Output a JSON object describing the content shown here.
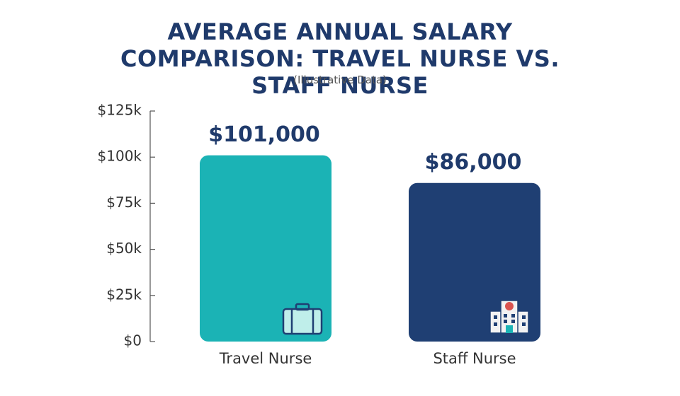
{
  "chart_data": {
    "type": "bar",
    "title": "AVERAGE ANNUAL SALARY COMPARISON: TRAVEL NURSE VS. STAFF NURSE",
    "subtitle": "(Illustrative Data)",
    "categories": [
      "Travel Nurse",
      "Staff Nurse"
    ],
    "values": [
      101000,
      86000
    ],
    "value_labels": [
      "$101,000",
      "$86,000"
    ],
    "colors": [
      "#1bb3b5",
      "#1f3f73"
    ],
    "ylim": [
      0,
      125000
    ],
    "yticks": [
      {
        "value": 0,
        "label": "$0"
      },
      {
        "value": 25000,
        "label": "$25k"
      },
      {
        "value": 50000,
        "label": "$50k"
      },
      {
        "value": 75000,
        "label": "$75k"
      },
      {
        "value": 100000,
        "label": "$100k"
      },
      {
        "value": 125000,
        "label": "$125k"
      }
    ]
  }
}
